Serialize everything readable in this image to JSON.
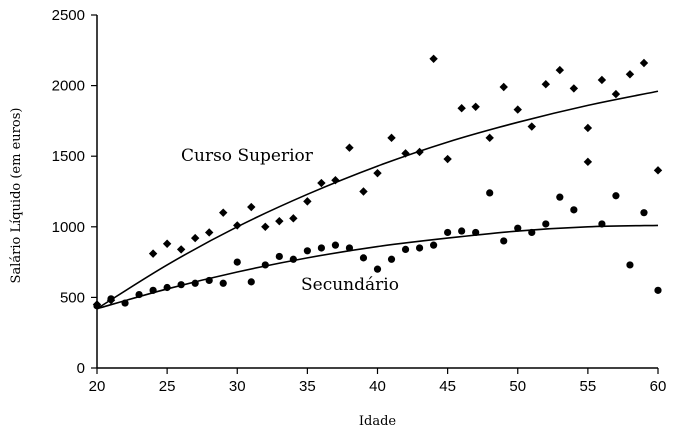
{
  "chart_data": {
    "type": "scatter",
    "title": "",
    "xlabel": "Idade",
    "ylabel": "Salário Líquido (em euros)",
    "xlim": [
      20,
      60
    ],
    "ylim": [
      0,
      2500
    ],
    "xticks": [
      20,
      25,
      30,
      35,
      40,
      45,
      50,
      55,
      60
    ],
    "yticks": [
      0,
      500,
      1000,
      1500,
      2000,
      2500
    ],
    "grid": false,
    "colors": {
      "marker": "#000000",
      "curve": "#000000",
      "axis": "#000000"
    },
    "series": [
      {
        "name": "Curso Superior",
        "marker": "diamond",
        "x": [
          20,
          21,
          24,
          25,
          26,
          27,
          28,
          29,
          30,
          31,
          32,
          33,
          34,
          35,
          36,
          37,
          38,
          39,
          40,
          41,
          42,
          43,
          44,
          45,
          46,
          47,
          48,
          49,
          50,
          51,
          52,
          53,
          54,
          55,
          55,
          56,
          57,
          58,
          59,
          60
        ],
        "y": [
          450,
          480,
          810,
          880,
          840,
          920,
          960,
          1100,
          1010,
          1140,
          1000,
          1040,
          1060,
          1180,
          1310,
          1330,
          1560,
          1250,
          1380,
          1630,
          1520,
          1530,
          2190,
          1480,
          1840,
          1850,
          1630,
          1990,
          1830,
          1710,
          2010,
          2110,
          1980,
          1700,
          1460,
          2040,
          1940,
          2080,
          2160,
          1400
        ],
        "fit": [
          [
            20,
            420
          ],
          [
            25,
            730
          ],
          [
            30,
            1000
          ],
          [
            35,
            1230
          ],
          [
            40,
            1430
          ],
          [
            45,
            1600
          ],
          [
            50,
            1740
          ],
          [
            55,
            1860
          ],
          [
            60,
            1960
          ]
        ]
      },
      {
        "name": "Secundário",
        "marker": "circle",
        "x": [
          20,
          21,
          22,
          23,
          24,
          25,
          26,
          27,
          28,
          29,
          30,
          31,
          32,
          33,
          34,
          35,
          36,
          37,
          38,
          39,
          40,
          41,
          42,
          43,
          44,
          45,
          46,
          47,
          48,
          49,
          50,
          51,
          52,
          53,
          54,
          56,
          57,
          58,
          59,
          60
        ],
        "y": [
          440,
          490,
          460,
          520,
          550,
          570,
          590,
          600,
          620,
          600,
          750,
          610,
          730,
          790,
          770,
          830,
          850,
          870,
          850,
          780,
          700,
          770,
          840,
          850,
          870,
          960,
          970,
          960,
          1240,
          900,
          990,
          960,
          1020,
          1210,
          1120,
          1020,
          1220,
          730,
          1100,
          550
        ],
        "fit": [
          [
            20,
            420
          ],
          [
            25,
            560
          ],
          [
            30,
            680
          ],
          [
            35,
            780
          ],
          [
            40,
            860
          ],
          [
            45,
            920
          ],
          [
            50,
            970
          ],
          [
            55,
            1000
          ],
          [
            60,
            1010
          ]
        ]
      }
    ]
  }
}
